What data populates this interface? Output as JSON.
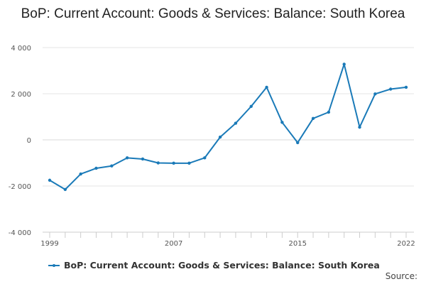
{
  "chart_data": {
    "type": "line",
    "title": "BoP: Current Account: Goods & Services: Balance: South Korea",
    "xlabel": "",
    "ylabel": "",
    "x": [
      1999,
      2000,
      2001,
      2002,
      2003,
      2004,
      2005,
      2006,
      2007,
      2008,
      2009,
      2010,
      2011,
      2012,
      2013,
      2014,
      2015,
      2016,
      2017,
      2018,
      2019,
      2020,
      2021,
      2022
    ],
    "xticks": [
      "1999",
      "2007",
      "2015",
      "2022"
    ],
    "ylim": [
      -4000,
      4000
    ],
    "yticks": [
      -4000,
      -2000,
      0,
      2000,
      4000
    ],
    "ytick_labels": [
      "-4 000",
      "-2 000",
      "0",
      "2 000",
      "4 000"
    ],
    "series": [
      {
        "name": "BoP: Current Account: Goods & Services: Balance: South Korea",
        "color": "#1a7ab8",
        "values": [
          -1750,
          -2150,
          -1480,
          -1230,
          -1130,
          -780,
          -830,
          -1000,
          -1010,
          -1010,
          -780,
          120,
          720,
          1450,
          2280,
          760,
          -120,
          930,
          1200,
          3280,
          550,
          1990,
          2200,
          2280
        ]
      }
    ],
    "grid": true,
    "legend_position": "bottom-left"
  },
  "footer": {
    "source_label": "Source:"
  }
}
